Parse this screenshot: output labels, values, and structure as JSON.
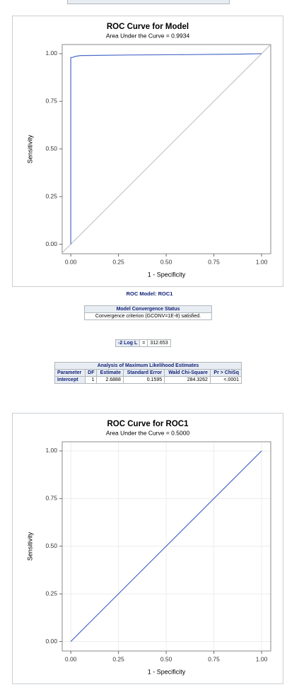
{
  "chart_data": [
    {
      "type": "line",
      "title": "ROC Curve for Model",
      "subtitle": "Area Under the Curve = 0.9934",
      "xlabel": "1 - Specificity",
      "ylabel": "Sensitivity",
      "x": [
        0,
        0,
        0.01,
        0.02,
        0.05,
        0.3,
        0.6,
        0.9,
        1
      ],
      "series": [
        {
          "color": "#4a6bc8",
          "values": [
            0,
            0.98,
            0.98,
            0.985,
            0.99,
            0.993,
            0.995,
            0.998,
            1
          ]
        }
      ],
      "xlim": [
        -0.045,
        1.048
      ],
      "ylim": [
        -0.05,
        1.048
      ],
      "xticks": [
        {
          "value": 0,
          "label": "0.00"
        },
        {
          "value": 0.25,
          "label": "0.25"
        },
        {
          "value": 0.5,
          "label": "0.50"
        },
        {
          "value": 0.75,
          "label": "0.75"
        },
        {
          "value": 1,
          "label": "1.00"
        }
      ],
      "yticks": [
        {
          "value": 0,
          "label": "0.00"
        },
        {
          "value": 0.25,
          "label": "0.25"
        },
        {
          "value": 0.5,
          "label": "0.50"
        },
        {
          "value": 0.75,
          "label": "0.75"
        },
        {
          "value": 1,
          "label": "1.00"
        }
      ],
      "grid": false,
      "diagonal": true
    },
    {
      "type": "line",
      "title": "ROC Curve for ROC1",
      "subtitle": "Area Under the Curve = 0.5000",
      "xlabel": "1 - Specificity",
      "ylabel": "Sensitivity",
      "x": [
        0,
        1
      ],
      "series": [
        {
          "color": "#4a6bc8",
          "values": [
            0,
            1
          ]
        }
      ],
      "xlim": [
        -0.045,
        1.048
      ],
      "ylim": [
        -0.05,
        1.048
      ],
      "xticks": [
        {
          "value": 0,
          "label": "0.00"
        },
        {
          "value": 0.25,
          "label": "0.25"
        },
        {
          "value": 0.5,
          "label": "0.50"
        },
        {
          "value": 0.75,
          "label": "0.75"
        },
        {
          "value": 1,
          "label": "1.00"
        }
      ],
      "yticks": [
        {
          "value": 0,
          "label": "0.00"
        },
        {
          "value": 0.25,
          "label": "0.25"
        },
        {
          "value": 0.5,
          "label": "0.50"
        },
        {
          "value": 0.75,
          "label": "0.75"
        },
        {
          "value": 1,
          "label": "1.00"
        }
      ],
      "grid": true,
      "diagonal": false
    }
  ],
  "model_title": "ROC Model: ROC1",
  "convergence": {
    "title": "Model Convergence Status",
    "text": "Convergence criterion (GCONV=1E-8) satisfied."
  },
  "loglik": {
    "label": "-2 Log L",
    "eq": "=",
    "value": "312.653"
  },
  "estimates": {
    "title": "Analysis of Maximum Likelihood Estimates",
    "columns": [
      "Parameter",
      "DF",
      "Estimate",
      "Standard Error",
      "Wald Chi-Square",
      "Pr > ChiSq"
    ],
    "rows": [
      [
        "Intercept",
        "1",
        "2.6888",
        "0.1595",
        "284.3262",
        "<.0001"
      ]
    ]
  }
}
